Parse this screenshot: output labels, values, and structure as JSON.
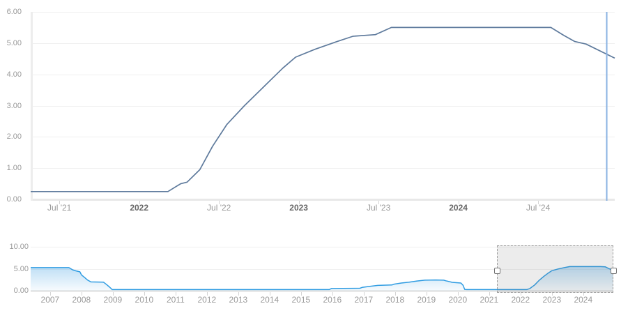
{
  "colors": {
    "main_line": "#5e7a9c",
    "nav_line": "#2f9ce2",
    "nav_fill_color": "#3399e0",
    "grid": "#f0f0f0",
    "axis_bar": "#e8e8e8",
    "y_axis_bar": "#ededed",
    "tick": "#d4d4d4",
    "label": "#999999",
    "label_emphasis": "#666666",
    "current_plotline": "#8ab2e2",
    "selection_border": "#9c9c9c",
    "selection_mask": "rgba(105,105,105,0.13)",
    "handle_fill": "#ffffff",
    "handle_border": "#757575"
  },
  "chart_data": [
    {
      "type": "line",
      "name": "policy-rate-main-chart",
      "title": "",
      "xlabel": "",
      "ylabel": "",
      "grid": true,
      "legend": "none",
      "ylim": [
        0,
        6
      ],
      "xlim": [
        2021.32,
        2024.98
      ],
      "y_ticks": [
        {
          "v": 0,
          "label": "0.00"
        },
        {
          "v": 1,
          "label": "1.00"
        },
        {
          "v": 2,
          "label": "2.00"
        },
        {
          "v": 3,
          "label": "3.00"
        },
        {
          "v": 4,
          "label": "4.00"
        },
        {
          "v": 5,
          "label": "5.00"
        },
        {
          "v": 6,
          "label": "6.00"
        }
      ],
      "x_ticks": [
        {
          "t": 2021.5,
          "label": "Jul '21",
          "emphasis": false
        },
        {
          "t": 2022.0,
          "label": "2022",
          "emphasis": true
        },
        {
          "t": 2022.5,
          "label": "Jul '22",
          "emphasis": false
        },
        {
          "t": 2023.0,
          "label": "2023",
          "emphasis": true
        },
        {
          "t": 2023.5,
          "label": "Jul '23",
          "emphasis": false
        },
        {
          "t": 2024.0,
          "label": "2024",
          "emphasis": true
        },
        {
          "t": 2024.5,
          "label": "Jul '24",
          "emphasis": false
        }
      ],
      "series": [
        {
          "name": "rate",
          "points": [
            [
              2021.32,
              0.25
            ],
            [
              2021.6,
              0.25
            ],
            [
              2021.9,
              0.25
            ],
            [
              2022.18,
              0.25
            ],
            [
              2022.26,
              0.5
            ],
            [
              2022.3,
              0.55
            ],
            [
              2022.38,
              0.95
            ],
            [
              2022.46,
              1.7
            ],
            [
              2022.55,
              2.4
            ],
            [
              2022.66,
              3.0
            ],
            [
              2022.78,
              3.6
            ],
            [
              2022.9,
              4.2
            ],
            [
              2022.98,
              4.55
            ],
            [
              2023.1,
              4.8
            ],
            [
              2023.24,
              5.05
            ],
            [
              2023.34,
              5.22
            ],
            [
              2023.48,
              5.27
            ],
            [
              2023.58,
              5.5
            ],
            [
              2024.1,
              5.5
            ],
            [
              2024.58,
              5.5
            ],
            [
              2024.66,
              5.25
            ],
            [
              2024.73,
              5.05
            ],
            [
              2024.8,
              4.97
            ],
            [
              2024.98,
              4.52
            ]
          ]
        }
      ],
      "current_value_line_x": 2024.93
    },
    {
      "type": "area",
      "name": "navigator-chart",
      "title": "",
      "grid": true,
      "legend": "none",
      "ylim": [
        0,
        10
      ],
      "xlim": [
        2006.38,
        2024.96
      ],
      "y_ticks": [
        {
          "v": 0,
          "label": "0.00"
        },
        {
          "v": 5,
          "label": "5.00"
        },
        {
          "v": 10,
          "label": "10.00"
        }
      ],
      "x_ticks": [
        {
          "t": 2007,
          "label": "2007"
        },
        {
          "t": 2008,
          "label": "2008"
        },
        {
          "t": 2009,
          "label": "2009"
        },
        {
          "t": 2010,
          "label": "2010"
        },
        {
          "t": 2011,
          "label": "2011"
        },
        {
          "t": 2012,
          "label": "2012"
        },
        {
          "t": 2013,
          "label": "2013"
        },
        {
          "t": 2014,
          "label": "2014"
        },
        {
          "t": 2015,
          "label": "2015"
        },
        {
          "t": 2016,
          "label": "2016"
        },
        {
          "t": 2017,
          "label": "2017"
        },
        {
          "t": 2018,
          "label": "2018"
        },
        {
          "t": 2019,
          "label": "2019"
        },
        {
          "t": 2020,
          "label": "2020"
        },
        {
          "t": 2021,
          "label": "2021"
        },
        {
          "t": 2022,
          "label": "2022"
        },
        {
          "t": 2023,
          "label": "2023"
        },
        {
          "t": 2024,
          "label": "2024"
        }
      ],
      "series": [
        {
          "name": "rate-history",
          "points": [
            [
              2006.38,
              5.25
            ],
            [
              2007.6,
              5.25
            ],
            [
              2007.72,
              4.75
            ],
            [
              2007.83,
              4.5
            ],
            [
              2007.95,
              4.3
            ],
            [
              2008.0,
              3.6
            ],
            [
              2008.1,
              3.0
            ],
            [
              2008.2,
              2.4
            ],
            [
              2008.3,
              2.0
            ],
            [
              2008.7,
              1.95
            ],
            [
              2008.8,
              1.4
            ],
            [
              2008.9,
              0.8
            ],
            [
              2008.98,
              0.25
            ],
            [
              2015.9,
              0.25
            ],
            [
              2015.97,
              0.5
            ],
            [
              2016.88,
              0.55
            ],
            [
              2016.95,
              0.75
            ],
            [
              2017.2,
              1.0
            ],
            [
              2017.45,
              1.2
            ],
            [
              2017.9,
              1.3
            ],
            [
              2017.97,
              1.5
            ],
            [
              2018.2,
              1.75
            ],
            [
              2018.45,
              1.95
            ],
            [
              2018.7,
              2.2
            ],
            [
              2018.95,
              2.4
            ],
            [
              2019.3,
              2.45
            ],
            [
              2019.55,
              2.4
            ],
            [
              2019.62,
              2.25
            ],
            [
              2019.72,
              2.1
            ],
            [
              2019.82,
              1.9
            ],
            [
              2020.1,
              1.75
            ],
            [
              2020.17,
              1.2
            ],
            [
              2020.22,
              0.3
            ],
            [
              2020.28,
              0.25
            ],
            [
              2022.2,
              0.25
            ],
            [
              2022.3,
              0.5
            ],
            [
              2022.45,
              1.3
            ],
            [
              2022.6,
              2.4
            ],
            [
              2022.75,
              3.3
            ],
            [
              2022.9,
              4.1
            ],
            [
              2023.0,
              4.55
            ],
            [
              2023.2,
              4.95
            ],
            [
              2023.4,
              5.25
            ],
            [
              2023.57,
              5.5
            ],
            [
              2024.55,
              5.5
            ],
            [
              2024.7,
              5.45
            ],
            [
              2024.8,
              5.1
            ],
            [
              2024.9,
              4.8
            ],
            [
              2024.96,
              4.55
            ]
          ]
        }
      ],
      "selection": {
        "from": 2021.25,
        "to": 2024.96
      }
    }
  ]
}
